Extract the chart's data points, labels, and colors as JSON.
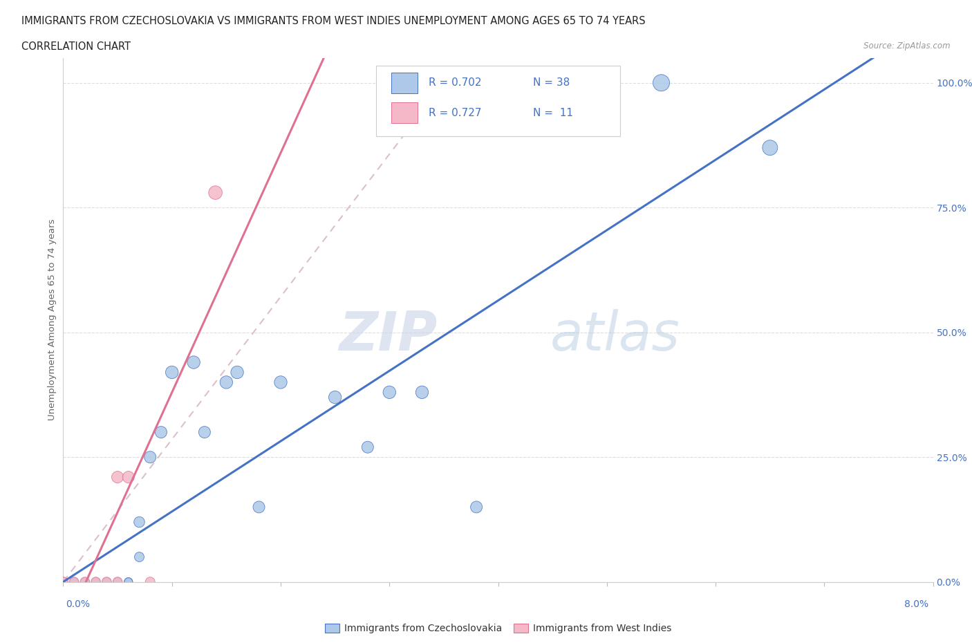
{
  "title_line1": "IMMIGRANTS FROM CZECHOSLOVAKIA VS IMMIGRANTS FROM WEST INDIES UNEMPLOYMENT AMONG AGES 65 TO 74 YEARS",
  "title_line2": "CORRELATION CHART",
  "source": "Source: ZipAtlas.com",
  "ylabel": "Unemployment Among Ages 65 to 74 years",
  "legend_blue_r": "R = 0.702",
  "legend_blue_n": "N = 38",
  "legend_pink_r": "R = 0.727",
  "legend_pink_n": "N =  11",
  "legend_label_blue": "Immigrants from Czechoslovakia",
  "legend_label_pink": "Immigrants from West Indies",
  "blue_color": "#adc8e8",
  "blue_line_color": "#4472c4",
  "pink_color": "#f4b8c8",
  "pink_line_color": "#e07090",
  "dash_line_color": "#d8b8c8",
  "text_color_blue": "#4472c4",
  "blue_scatter_x": [
    0.0,
    0.0,
    0.001,
    0.001,
    0.001,
    0.002,
    0.002,
    0.002,
    0.003,
    0.003,
    0.003,
    0.004,
    0.004,
    0.005,
    0.005,
    0.005,
    0.005,
    0.006,
    0.006,
    0.006,
    0.007,
    0.007,
    0.008,
    0.009,
    0.01,
    0.012,
    0.013,
    0.015,
    0.016,
    0.018,
    0.02,
    0.025,
    0.028,
    0.03,
    0.033,
    0.038,
    0.055,
    0.065
  ],
  "blue_scatter_y": [
    0.0,
    0.0,
    0.0,
    0.0,
    0.0,
    0.0,
    0.0,
    0.0,
    0.0,
    0.0,
    0.0,
    0.0,
    0.0,
    0.0,
    0.0,
    0.0,
    0.0,
    0.0,
    0.0,
    0.0,
    0.05,
    0.12,
    0.25,
    0.3,
    0.42,
    0.44,
    0.3,
    0.4,
    0.42,
    0.15,
    0.4,
    0.37,
    0.27,
    0.38,
    0.38,
    0.15,
    1.0,
    0.87
  ],
  "pink_scatter_x": [
    0.0,
    0.0,
    0.001,
    0.002,
    0.003,
    0.004,
    0.005,
    0.005,
    0.006,
    0.008,
    0.014
  ],
  "pink_scatter_y": [
    0.0,
    0.0,
    0.0,
    0.0,
    0.0,
    0.0,
    0.0,
    0.21,
    0.21,
    0.0,
    0.78
  ],
  "blue_scatter_sizes": [
    30,
    30,
    30,
    30,
    30,
    30,
    30,
    30,
    30,
    30,
    30,
    30,
    30,
    30,
    30,
    30,
    30,
    30,
    30,
    30,
    40,
    50,
    60,
    60,
    70,
    70,
    60,
    70,
    70,
    60,
    70,
    70,
    60,
    70,
    70,
    60,
    120,
    100
  ],
  "pink_scatter_sizes": [
    40,
    40,
    40,
    40,
    40,
    40,
    40,
    60,
    60,
    40,
    80
  ],
  "xlim": [
    0,
    0.08
  ],
  "ylim": [
    0,
    1.05
  ],
  "xticks": [
    0.0,
    0.01,
    0.02,
    0.03,
    0.04,
    0.05,
    0.06,
    0.07,
    0.08
  ],
  "yticks": [
    0.0,
    0.25,
    0.5,
    0.75,
    1.0
  ],
  "ytick_labels": [
    "0.0%",
    "25.0%",
    "50.0%",
    "75.0%",
    "100.0%"
  ]
}
